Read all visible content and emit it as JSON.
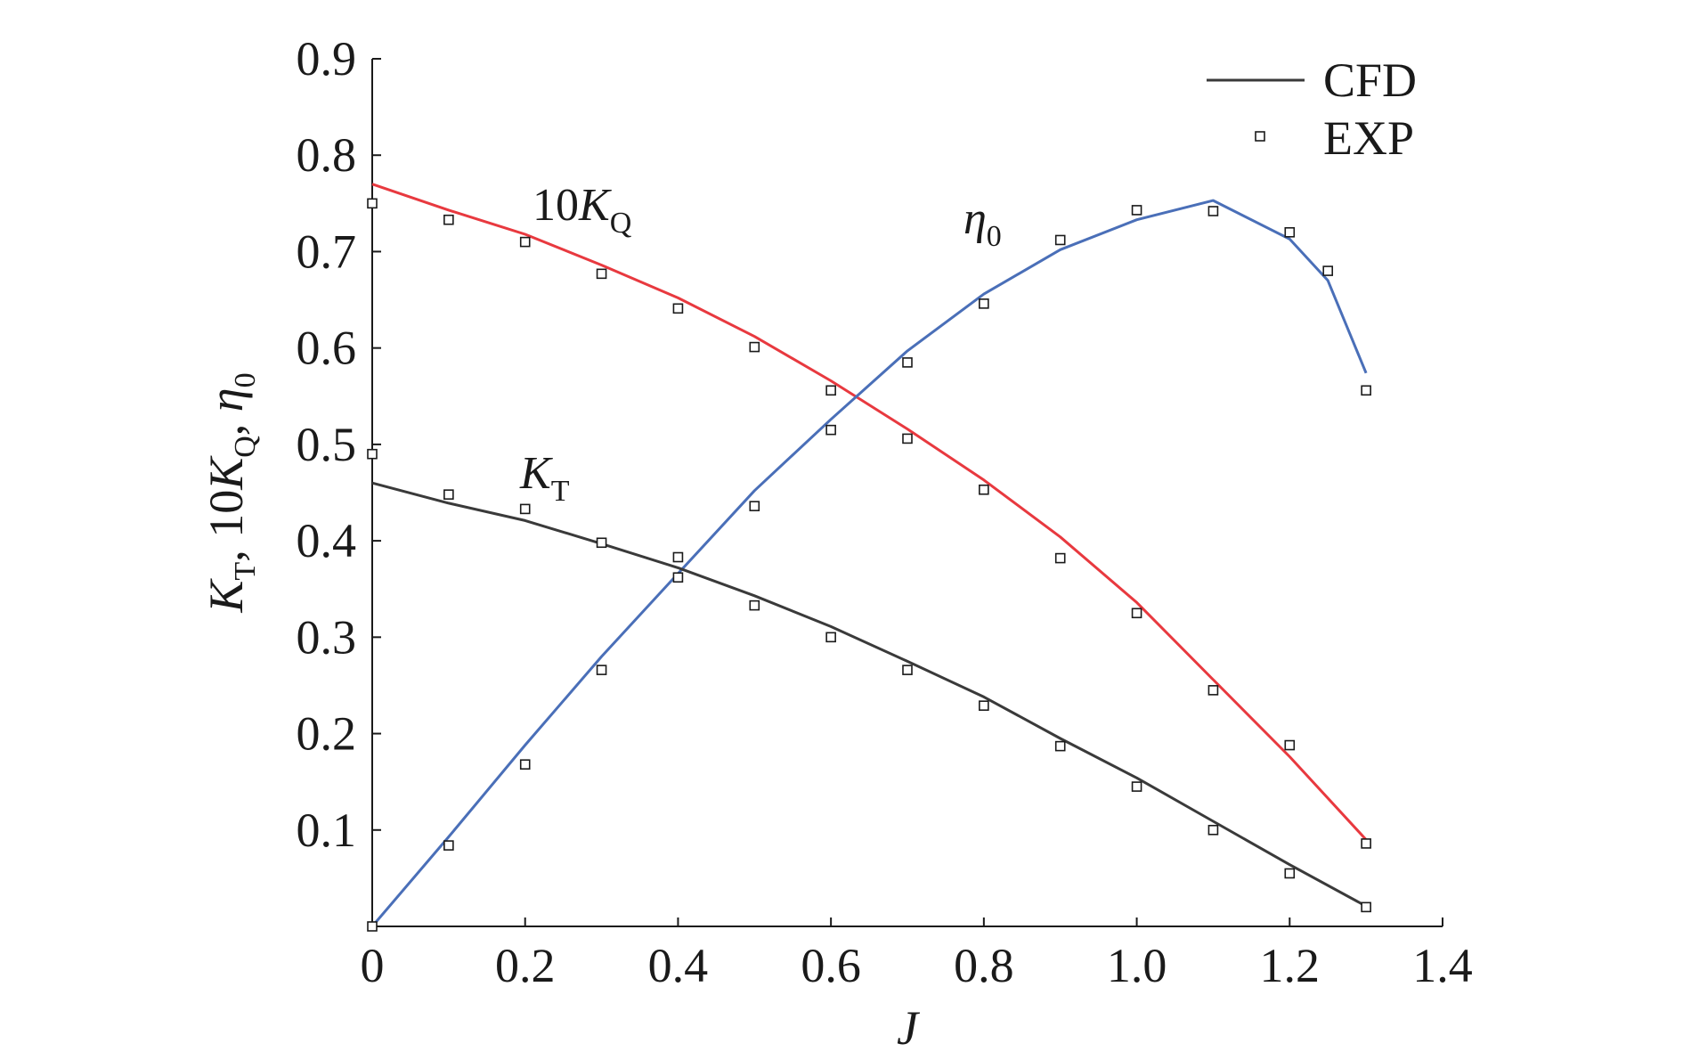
{
  "chart_data": {
    "type": "line",
    "xlabel": "J",
    "ylabel": {
      "kt_sym": "K",
      "kt_sub": "T",
      "sep1": ", 10",
      "kq_sym": "K",
      "kq_sub": "Q",
      "sep2": ", ",
      "eta_sym": "η",
      "eta_sub": "0"
    },
    "xlim": [
      0,
      1.4
    ],
    "ylim": [
      0,
      0.9
    ],
    "xticks": [
      0,
      0.2,
      0.4,
      0.6,
      0.8,
      1.0,
      1.2,
      1.4
    ],
    "xtick_labels": [
      "0",
      "0.2",
      "0.4",
      "0.6",
      "0.8",
      "1.0",
      "1.2",
      "1.4"
    ],
    "yticks": [
      0.1,
      0.2,
      0.3,
      0.4,
      0.5,
      0.6,
      0.7,
      0.8,
      0.9
    ],
    "ytick_labels": [
      "0.1",
      "0.2",
      "0.3",
      "0.4",
      "0.5",
      "0.6",
      "0.7",
      "0.8",
      "0.9"
    ],
    "grid": false,
    "legend": {
      "position": "top-right",
      "entries": [
        {
          "label": "CFD",
          "style": "line",
          "color": "#3a3a3a"
        },
        {
          "label": "EXP",
          "style": "open-square-marker",
          "color": "#1a1a1a"
        }
      ]
    },
    "curve_labels": [
      {
        "series": "10KQ",
        "prefix": "10",
        "sym": "K",
        "sub": "Q"
      },
      {
        "series": "eta0",
        "prefix": "",
        "sym": "η",
        "sub": "0"
      },
      {
        "series": "KT",
        "prefix": "",
        "sym": "K",
        "sub": "T"
      }
    ],
    "series": [
      {
        "name": "10KQ",
        "color": "#e8393f",
        "cfd": {
          "x": [
            0,
            0.1,
            0.2,
            0.3,
            0.4,
            0.5,
            0.6,
            0.7,
            0.8,
            0.9,
            1.0,
            1.1,
            1.2,
            1.3
          ],
          "y": [
            0.77,
            0.743,
            0.718,
            0.686,
            0.652,
            0.612,
            0.566,
            0.516,
            0.463,
            0.404,
            0.336,
            0.256,
            0.176,
            0.09
          ]
        },
        "exp": {
          "x": [
            0,
            0.1,
            0.2,
            0.3,
            0.4,
            0.5,
            0.6,
            0.7,
            0.8,
            0.9,
            1.0,
            1.1,
            1.2,
            1.3
          ],
          "y": [
            0.75,
            0.733,
            0.71,
            0.677,
            0.641,
            0.601,
            0.556,
            0.506,
            0.453,
            0.382,
            0.325,
            0.245,
            0.188,
            0.086
          ]
        }
      },
      {
        "name": "eta0",
        "color": "#4a6fb8",
        "cfd": {
          "x": [
            0,
            0.1,
            0.2,
            0.3,
            0.4,
            0.5,
            0.6,
            0.7,
            0.8,
            0.9,
            1.0,
            1.1,
            1.2,
            1.25,
            1.3
          ],
          "y": [
            0.0,
            0.093,
            0.188,
            0.28,
            0.366,
            0.452,
            0.526,
            0.597,
            0.656,
            0.702,
            0.733,
            0.753,
            0.713,
            0.67,
            0.574
          ]
        },
        "exp": {
          "x": [
            0,
            0.1,
            0.2,
            0.3,
            0.4,
            0.5,
            0.6,
            0.7,
            0.8,
            0.9,
            1.0,
            1.1,
            1.2,
            1.25,
            1.3
          ],
          "y": [
            0.0,
            0.084,
            0.168,
            0.266,
            0.362,
            0.436,
            0.515,
            0.585,
            0.646,
            0.712,
            0.743,
            0.742,
            0.72,
            0.68,
            0.556
          ]
        }
      },
      {
        "name": "KT",
        "color": "#3a3a3a",
        "cfd": {
          "x": [
            0,
            0.1,
            0.2,
            0.3,
            0.4,
            0.5,
            0.6,
            0.7,
            0.8,
            0.9,
            1.0,
            1.1,
            1.2,
            1.3
          ],
          "y": [
            0.46,
            0.439,
            0.421,
            0.397,
            0.372,
            0.343,
            0.311,
            0.275,
            0.238,
            0.195,
            0.154,
            0.109,
            0.064,
            0.021
          ]
        },
        "exp": {
          "x": [
            0,
            0.1,
            0.2,
            0.3,
            0.4,
            0.5,
            0.6,
            0.7,
            0.8,
            0.9,
            1.0,
            1.1,
            1.2,
            1.3
          ],
          "y": [
            0.49,
            0.448,
            0.433,
            0.398,
            0.383,
            0.333,
            0.3,
            0.266,
            0.229,
            0.187,
            0.145,
            0.1,
            0.055,
            0.02
          ]
        }
      }
    ]
  }
}
